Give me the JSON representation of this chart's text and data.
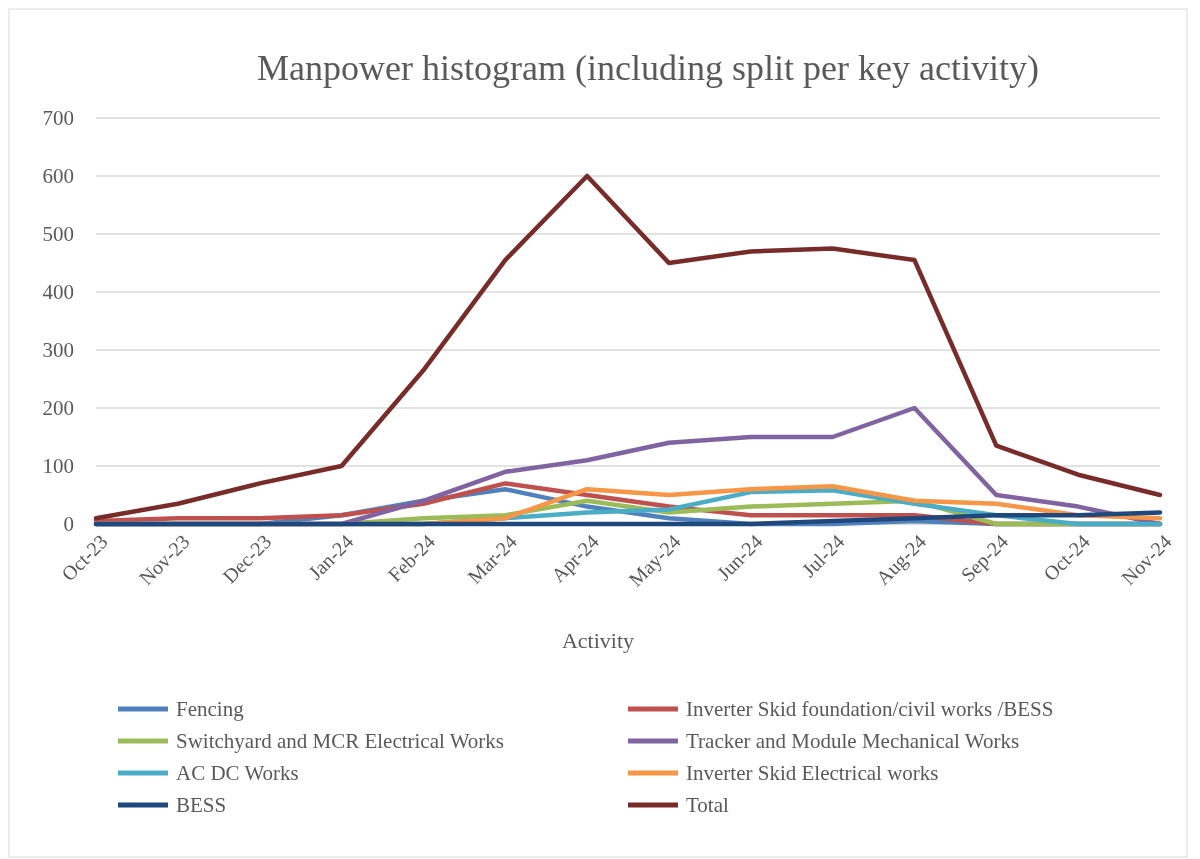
{
  "chart_data": {
    "type": "line",
    "title": "Manpower histogram (including split per key activity)",
    "xlabel": "Activity",
    "categories": [
      "Oct-23",
      "Nov-23",
      "Dec-23",
      "Jan-24",
      "Feb-24",
      "Mar-24",
      "Apr-24",
      "May-24",
      "Jun-24",
      "Jul-24",
      "Aug-24",
      "Sep-24",
      "Oct-24",
      "Nov-24"
    ],
    "ylim": [
      0,
      700
    ],
    "yticks": [
      0,
      100,
      200,
      300,
      400,
      500,
      600,
      700
    ],
    "grid": "y",
    "legend": "bottom",
    "marker": "none",
    "line_style": "solid",
    "series": [
      {
        "name": "Fencing",
        "color": "#4f81bd",
        "values": [
          0,
          0,
          0,
          15,
          40,
          60,
          30,
          10,
          0,
          0,
          5,
          0,
          0,
          0
        ]
      },
      {
        "name": "Inverter Skid foundation/civil works /BESS",
        "color": "#c0504d",
        "values": [
          5,
          10,
          10,
          15,
          35,
          70,
          50,
          30,
          15,
          15,
          15,
          0,
          0,
          0
        ]
      },
      {
        "name": "Switchyard and MCR Electrical Works",
        "color": "#9bbb59",
        "values": [
          null,
          null,
          null,
          0,
          10,
          15,
          40,
          20,
          30,
          35,
          40,
          0,
          0,
          0
        ]
      },
      {
        "name": "Tracker and Module Mechanical Works",
        "color": "#8064a2",
        "values": [
          0,
          0,
          0,
          0,
          40,
          90,
          110,
          140,
          150,
          150,
          200,
          50,
          30,
          0
        ]
      },
      {
        "name": "AC DC Works",
        "color": "#4bacc6",
        "values": [
          0,
          0,
          0,
          0,
          0,
          10,
          20,
          25,
          55,
          58,
          35,
          15,
          0,
          0
        ]
      },
      {
        "name": "Inverter Skid Electrical works",
        "color": "#f79646",
        "values": [
          0,
          0,
          0,
          0,
          0,
          10,
          60,
          50,
          60,
          65,
          40,
          35,
          15,
          10
        ]
      },
      {
        "name": "BESS",
        "color": "#1f497d",
        "values": [
          0,
          0,
          0,
          0,
          0,
          0,
          0,
          0,
          0,
          5,
          10,
          15,
          15,
          20
        ]
      },
      {
        "name": "Total",
        "color": "#772c2a",
        "values": [
          10,
          35,
          70,
          100,
          265,
          455,
          600,
          450,
          470,
          475,
          455,
          135,
          85,
          50
        ]
      }
    ]
  }
}
